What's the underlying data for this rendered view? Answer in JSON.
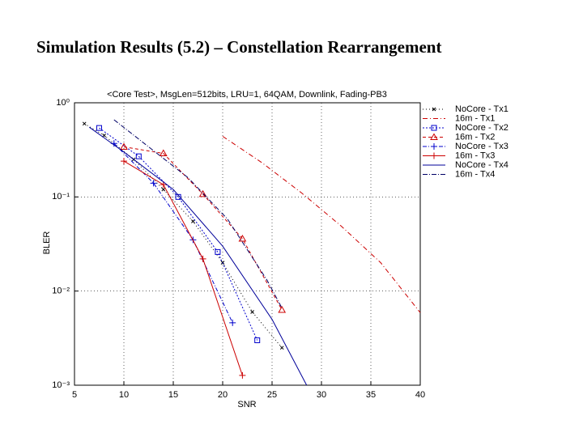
{
  "page_title": "Simulation Results (5.2) – Constellation Rearrangement",
  "chart_data": {
    "type": "line",
    "title": "<Core Test>, MsgLen=512bits, LRU=1, 64QAM, Downlink, Fading-PB3",
    "x_label": "SNR",
    "y_label": "BLER",
    "xlim": [
      5,
      40
    ],
    "xticks": [
      5,
      10,
      15,
      20,
      25,
      30,
      35,
      40
    ],
    "ylim": [
      0.001,
      1
    ],
    "y_scale": "log",
    "yticks": [
      {
        "value": 1,
        "label": "10⁰"
      },
      {
        "value": 0.1,
        "label": "10⁻¹"
      },
      {
        "value": 0.01,
        "label": "10⁻²"
      },
      {
        "value": 0.001,
        "label": "10⁻³"
      }
    ],
    "grid": true,
    "legend": "upper right",
    "series": [
      {
        "name": "NoCore - Tx1",
        "color": "#000000",
        "dash": "1,3",
        "marker": "x",
        "x": [
          6,
          8,
          11,
          14,
          17,
          20,
          23,
          26
        ],
        "values": [
          0.6,
          0.45,
          0.25,
          0.12,
          0.055,
          0.02,
          0.006,
          0.0025
        ]
      },
      {
        "name": "16m - Tx1",
        "color": "#cc0000",
        "dash": "6,3,1,3",
        "marker": "none",
        "x": [
          20,
          24,
          28,
          32,
          36,
          40
        ],
        "values": [
          0.44,
          0.23,
          0.11,
          0.049,
          0.02,
          0.0059
        ]
      },
      {
        "name": "NoCore - Tx2",
        "color": "#0000cc",
        "dash": "2,2",
        "marker": "square",
        "x": [
          7.5,
          11.5,
          15.5,
          19.5,
          23.5
        ],
        "values": [
          0.54,
          0.27,
          0.1,
          0.026,
          0.003
        ]
      },
      {
        "name": "16m - Tx2",
        "color": "#cc0000",
        "dash": "4,3",
        "marker": "triangle",
        "x": [
          10,
          14,
          18,
          22,
          26
        ],
        "values": [
          0.34,
          0.29,
          0.107,
          0.036,
          0.0063
        ]
      },
      {
        "name": "NoCore - Tx3",
        "color": "#0000cc",
        "dash": "5,2,1,2",
        "marker": "plus",
        "x": [
          9,
          13,
          17,
          21
        ],
        "values": [
          0.37,
          0.14,
          0.035,
          0.0046
        ]
      },
      {
        "name": "16m - Tx3",
        "color": "#cc0000",
        "dash": "none",
        "marker": "plus",
        "x": [
          10,
          14,
          18,
          22
        ],
        "values": [
          0.24,
          0.135,
          0.022,
          0.00127
        ]
      },
      {
        "name": "NoCore - Tx4",
        "color": "#000099",
        "dash": "none",
        "marker": "none",
        "x": [
          6.5,
          10,
          15,
          20,
          25,
          28.5
        ],
        "values": [
          0.55,
          0.3,
          0.12,
          0.03,
          0.005,
          0.001
        ]
      },
      {
        "name": "16m - Tx4",
        "color": "#000066",
        "dash": "6,2,1,2",
        "marker": "none",
        "x": [
          9,
          16.5,
          20.5,
          24.5,
          26
        ],
        "values": [
          0.66,
          0.16,
          0.058,
          0.013,
          0.0066
        ]
      }
    ]
  }
}
